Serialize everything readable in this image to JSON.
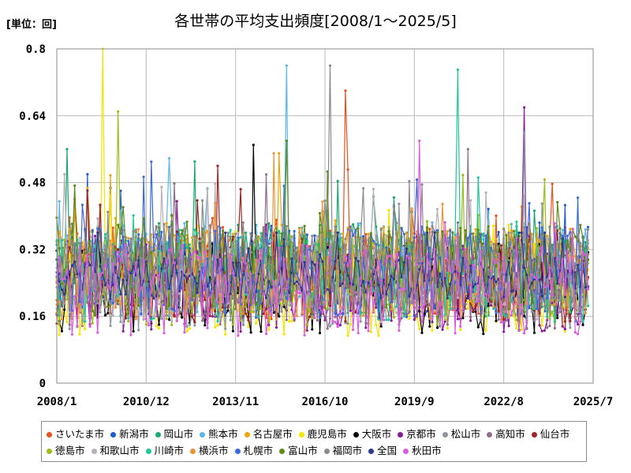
{
  "header": {
    "unit_label": "[単位：回]",
    "title": "各世帯の平均支出頻度[2008/1～2025/5]"
  },
  "chart_data": {
    "type": "line",
    "title": "各世帯の平均支出頻度[2008/1～2025/5]",
    "ylabel": "",
    "xlabel": "",
    "ylim": [
      0,
      0.8
    ],
    "yticks": [
      "0",
      "0.16",
      "0.32",
      "0.48",
      "0.64",
      "0.8"
    ],
    "xticks": [
      "2008/1",
      "2010/12",
      "2013/11",
      "2016/10",
      "2019/9",
      "2022/8",
      "2025/7"
    ],
    "grid": true,
    "legend_position": "bottom",
    "months": 209,
    "series": [
      {
        "name": "さいたま市",
        "color": "#e8501e",
        "peak": 0.7
      },
      {
        "name": "新潟市",
        "color": "#1f5bd6",
        "peak": 0.5
      },
      {
        "name": "岡山市",
        "color": "#18a870",
        "peak": 0.56
      },
      {
        "name": "熊本市",
        "color": "#5ab6e4",
        "peak": 0.76
      },
      {
        "name": "名古屋市",
        "color": "#f0a30a",
        "peak": 0.55
      },
      {
        "name": "鹿児島市",
        "color": "#f4e400",
        "peak": 0.8
      },
      {
        "name": "大阪市",
        "color": "#000000",
        "peak": 0.57
      },
      {
        "name": "京都市",
        "color": "#8a1a9e",
        "peak": 0.66
      },
      {
        "name": "松山市",
        "color": "#8a96a4",
        "peak": 0.6
      },
      {
        "name": "高知市",
        "color": "#8e6e8a",
        "peak": 0.56
      },
      {
        "name": "仙台市",
        "color": "#a02222",
        "peak": 0.52
      },
      {
        "name": "徳島市",
        "color": "#9cbc1a",
        "peak": 0.65
      },
      {
        "name": "和歌山市",
        "color": "#b8b0b8",
        "peak": 0.5
      },
      {
        "name": "川崎市",
        "color": "#1ec896",
        "peak": 0.75
      },
      {
        "name": "横浜市",
        "color": "#e8963a",
        "peak": 0.55
      },
      {
        "name": "札幌市",
        "color": "#3a6ad8",
        "peak": 0.53
      },
      {
        "name": "富山市",
        "color": "#5e8a18",
        "peak": 0.58
      },
      {
        "name": "福岡市",
        "color": "#8a8a8a",
        "peak": 0.76
      },
      {
        "name": "全国",
        "color": "#2e3a8a",
        "peak": 0.36
      },
      {
        "name": "秋田市",
        "color": "#e05ae0",
        "peak": 0.58
      }
    ]
  }
}
